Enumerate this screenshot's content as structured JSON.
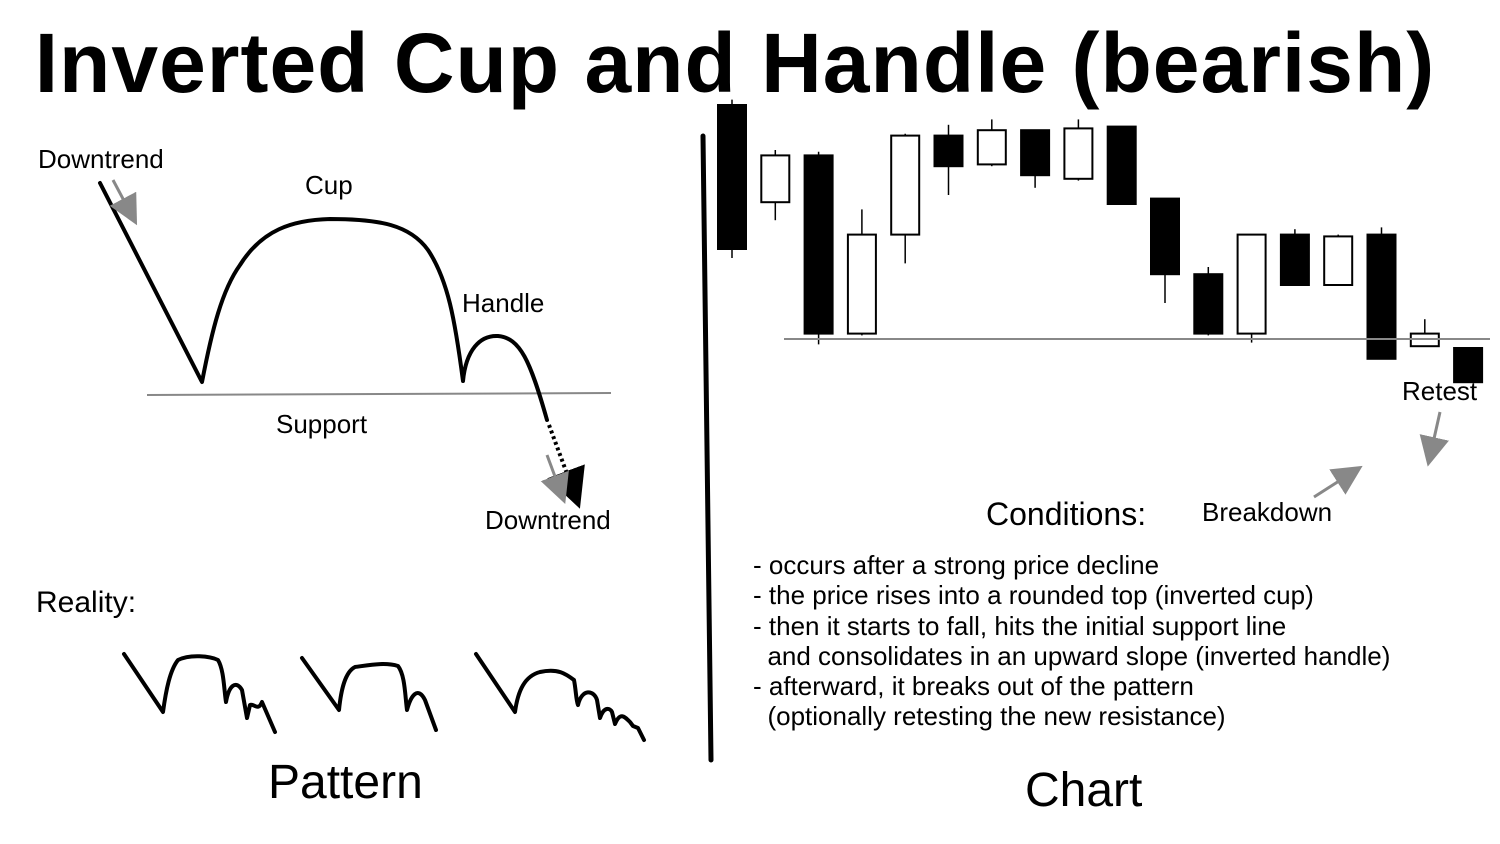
{
  "title": "Inverted Cup and Handle (bearish)",
  "pattern": {
    "labels": {
      "downtrend_top": "Downtrend",
      "cup": "Cup",
      "handle": "Handle",
      "support": "Support",
      "downtrend_bottom": "Downtrend",
      "reality": "Reality:"
    },
    "caption": "Pattern"
  },
  "chart": {
    "labels": {
      "retest": "Retest",
      "breakdown": "Breakdown"
    },
    "caption": "Chart",
    "conditions_heading": "Conditions:",
    "conditions": [
      "- occurs after a strong price decline",
      "- the price rises into a rounded top (inverted cup)",
      "- then it starts to fall, hits the initial support line",
      "  and consolidates in an upward slope (inverted handle)",
      "- afterward, it breaks out of the pattern",
      "  (optionally retesting the new resistance)"
    ],
    "candles": [
      {
        "open": 100,
        "close": 20,
        "high": 103,
        "low": 15,
        "color": "black"
      },
      {
        "open": 46,
        "close": 72,
        "high": 75,
        "low": 36,
        "color": "white"
      },
      {
        "open": 72,
        "close": -27,
        "high": 74,
        "low": -33,
        "color": "black"
      },
      {
        "open": -27,
        "close": 28,
        "high": 42,
        "low": -28,
        "color": "white"
      },
      {
        "open": 28,
        "close": 83,
        "high": 84,
        "low": 12,
        "color": "white"
      },
      {
        "open": 83,
        "close": 66,
        "high": 89,
        "low": 50,
        "color": "black"
      },
      {
        "open": 67,
        "close": 86,
        "high": 92,
        "low": 66,
        "color": "white"
      },
      {
        "open": 86,
        "close": 61,
        "high": 86,
        "low": 54,
        "color": "black"
      },
      {
        "open": 59,
        "close": 87,
        "high": 92,
        "low": 58,
        "color": "white"
      },
      {
        "open": 88,
        "close": 45,
        "high": 88,
        "low": 45,
        "color": "black"
      },
      {
        "open": 48,
        "close": 6,
        "high": 48,
        "low": -10,
        "color": "black"
      },
      {
        "open": 6,
        "close": -27,
        "high": 10,
        "low": -28,
        "color": "black"
      },
      {
        "open": -27,
        "close": 28,
        "high": 28,
        "low": -32,
        "color": "white"
      },
      {
        "open": 28,
        "close": 0,
        "high": 31,
        "low": 0,
        "color": "black"
      },
      {
        "open": 0,
        "close": 27,
        "high": 28,
        "low": 0,
        "color": "white"
      },
      {
        "open": 28,
        "close": -41,
        "high": 32,
        "low": -41,
        "color": "black"
      },
      {
        "open": -34,
        "close": -27,
        "high": -19,
        "low": -34,
        "color": "white"
      },
      {
        "open": -35,
        "close": -54,
        "high": -35,
        "low": -54,
        "color": "black"
      }
    ],
    "support_level": -30
  }
}
